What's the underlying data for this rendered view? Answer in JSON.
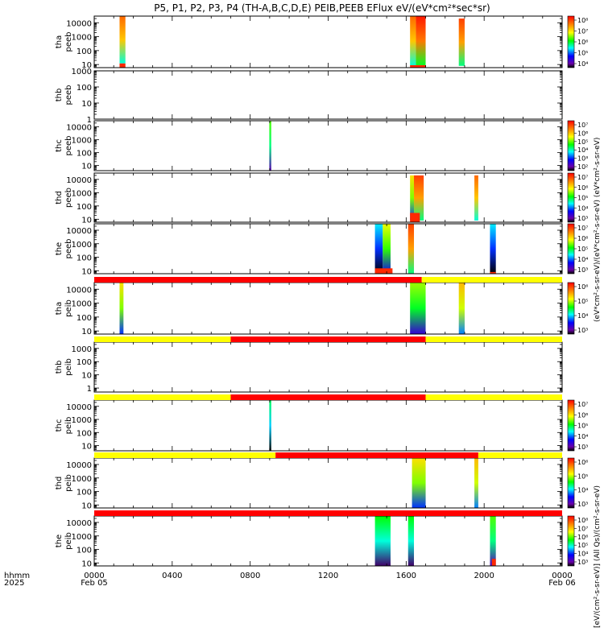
{
  "title": "P5, P1, P2, P3, P4 (TH-A,B,C,D,E) PEIB,PEEB EFlux eV/(eV*cm²*sec*sr)",
  "colorbar_label_top": "(eV*cm²-s-sr-eV)/(eV*cm²-s-sr-eV) (eV*cm²-s-sr-eV)",
  "colorbar_label_bottom": "[eV/(cm²-s-sr-eV)] (All Qs)/(cm²-s-sr-eV)",
  "x_axis": {
    "row_label_1": "hhmm",
    "row_label_2": "2025",
    "ticks": [
      "0000",
      "0400",
      "0800",
      "1200",
      "1600",
      "2000",
      "0000"
    ],
    "date_start": "Feb 05",
    "date_end": "Feb 06"
  },
  "chart_data": [
    {
      "type": "heatmap",
      "ylabel": [
        "tha",
        "peeb"
      ],
      "yscale": "log",
      "ylim": [
        6,
        30000
      ],
      "yticks": [
        "10000",
        "1000",
        "100",
        "10"
      ],
      "cbar_ticks": [
        "10⁸",
        "10⁷",
        "10⁶",
        "10⁵",
        "10⁴"
      ],
      "blocks": [
        {
          "x": [
            1.3,
            1.6
          ],
          "y": [
            12,
            30000
          ],
          "value": 0.75
        },
        {
          "x": [
            16.2,
            16.5
          ],
          "y": [
            8,
            30000
          ],
          "value": 0.75
        },
        {
          "x": [
            16.5,
            17.0
          ],
          "y": [
            8,
            30000
          ],
          "value": 0.85
        },
        {
          "x": [
            18.7,
            19.0
          ],
          "y": [
            8,
            20000
          ],
          "value": 0.8
        }
      ],
      "low_fill": [
        {
          "x": [
            1.3,
            1.6
          ],
          "y": [
            6,
            12
          ],
          "value": 0.95
        },
        {
          "x": [
            16.2,
            17.0
          ],
          "y": [
            6,
            9
          ],
          "value": 0.95
        }
      ]
    },
    {
      "type": "heatmap",
      "ylabel": [
        "thb",
        "peeb"
      ],
      "yscale": "log",
      "ylim": [
        1,
        1000
      ],
      "yticks": [
        "1000",
        "100",
        "10",
        "1"
      ],
      "cbar_ticks": [],
      "blocks": [],
      "low_fill": []
    },
    {
      "type": "heatmap",
      "ylabel": [
        "thc",
        "peeb"
      ],
      "yscale": "log",
      "ylim": [
        4,
        30000
      ],
      "yticks": [
        "10000",
        "1000",
        "100",
        "10"
      ],
      "cbar_ticks": [
        "10⁷",
        "10⁶",
        "10⁵",
        "10⁴",
        "10³",
        "10²"
      ],
      "blocks": [
        {
          "x": [
            8.98,
            9.08
          ],
          "y": [
            4,
            30000
          ],
          "value": 0.45
        }
      ],
      "low_fill": []
    },
    {
      "type": "heatmap",
      "ylabel": [
        "thd",
        "peeb"
      ],
      "yscale": "log",
      "ylim": [
        6,
        30000
      ],
      "yticks": [
        "10000",
        "1000",
        "100",
        "10"
      ],
      "cbar_ticks": [
        "10⁷",
        "10⁶",
        "10⁵",
        "10⁴",
        "10³"
      ],
      "blocks": [
        {
          "x": [
            16.2,
            16.4
          ],
          "y": [
            8,
            20000
          ],
          "value": 0.6
        },
        {
          "x": [
            16.4,
            16.9
          ],
          "y": [
            8,
            20000
          ],
          "value": 0.8
        },
        {
          "x": [
            19.5,
            19.7
          ],
          "y": [
            8,
            20000
          ],
          "value": 0.75
        }
      ],
      "low_fill": [
        {
          "x": [
            16.2,
            16.7
          ],
          "y": [
            6,
            30
          ],
          "value": 0.95
        }
      ]
    },
    {
      "type": "heatmap",
      "ylabel": [
        "the",
        "peeb"
      ],
      "yscale": "log",
      "ylim": [
        6,
        30000
      ],
      "yticks": [
        "10000",
        "1000",
        "100",
        "10"
      ],
      "cbar_ticks": [
        "10⁷",
        "10⁶",
        "10⁵",
        "10⁴",
        "10³"
      ],
      "blocks": [
        {
          "x": [
            14.4,
            14.8
          ],
          "y": [
            6,
            30000
          ],
          "value": 0.25
        },
        {
          "x": [
            14.8,
            15.2
          ],
          "y": [
            6,
            30000
          ],
          "value": 0.55
        },
        {
          "x": [
            16.1,
            16.4
          ],
          "y": [
            6,
            30000
          ],
          "value": 0.8
        },
        {
          "x": [
            20.3,
            20.6
          ],
          "y": [
            6,
            30000
          ],
          "value": 0.25
        }
      ],
      "low_fill": [
        {
          "x": [
            14.4,
            15.3
          ],
          "y": [
            6,
            15
          ],
          "value": 0.95
        },
        {
          "x": [
            20.3,
            20.6
          ],
          "y": [
            6,
            8
          ],
          "value": 0.95
        }
      ]
    },
    {
      "type": "heatmap",
      "ylabel": [
        "tha",
        "peib"
      ],
      "yscale": "log",
      "ylim": [
        6,
        30000
      ],
      "yticks": [
        "10000",
        "1000",
        "100",
        "10"
      ],
      "cbar_ticks": [
        "10⁶",
        "10⁵",
        "10⁴",
        "10³"
      ],
      "blocks": [
        {
          "x": [
            1.3,
            1.5
          ],
          "y": [
            6,
            30000
          ],
          "value": 0.6
        },
        {
          "x": [
            16.2,
            17.0
          ],
          "y": [
            6,
            30000
          ],
          "value": 0.5
        },
        {
          "x": [
            18.7,
            19.0
          ],
          "y": [
            6,
            30000
          ],
          "value": 0.65
        }
      ],
      "low_fill": []
    },
    {
      "type": "heatmap",
      "ylabel": [
        "thb",
        "peib"
      ],
      "yscale": "log",
      "ylim": [
        0.5,
        3000
      ],
      "yticks": [
        "1000",
        "100",
        "10",
        "1"
      ],
      "cbar_ticks": [],
      "blocks": [],
      "low_fill": []
    },
    {
      "type": "heatmap",
      "ylabel": [
        "thc",
        "peib"
      ],
      "yscale": "log",
      "ylim": [
        4,
        30000
      ],
      "yticks": [
        "10000",
        "1000",
        "100",
        "10"
      ],
      "cbar_ticks": [
        "10⁷",
        "10⁶",
        "10⁵",
        "10⁴",
        "10³"
      ],
      "blocks": [
        {
          "x": [
            8.98,
            9.08
          ],
          "y": [
            4,
            30000
          ],
          "value": 0.35
        }
      ],
      "low_fill": []
    },
    {
      "type": "heatmap",
      "ylabel": [
        "thd",
        "peib"
      ],
      "yscale": "log",
      "ylim": [
        6,
        30000
      ],
      "yticks": [
        "10000",
        "1000",
        "100",
        "10"
      ],
      "cbar_ticks": [
        "10⁶",
        "10⁵",
        "10⁴",
        "10³"
      ],
      "blocks": [
        {
          "x": [
            16.3,
            17.0
          ],
          "y": [
            6,
            30000
          ],
          "value": 0.6
        },
        {
          "x": [
            19.5,
            19.7
          ],
          "y": [
            6,
            30000
          ],
          "value": 0.65
        }
      ],
      "low_fill": []
    },
    {
      "type": "heatmap",
      "ylabel": [
        "the",
        "peib"
      ],
      "yscale": "log",
      "ylim": [
        6,
        30000
      ],
      "yticks": [
        "10000",
        "1000",
        "100",
        "10"
      ],
      "cbar_ticks": [
        "10⁸",
        "10⁷",
        "10⁶",
        "10⁵",
        "10⁴",
        "10³"
      ],
      "blocks": [
        {
          "x": [
            14.4,
            15.2
          ],
          "y": [
            6,
            30000
          ],
          "value": 0.4
        },
        {
          "x": [
            16.1,
            16.4
          ],
          "y": [
            6,
            30000
          ],
          "value": 0.4
        },
        {
          "x": [
            20.3,
            20.6
          ],
          "y": [
            6,
            30000
          ],
          "value": 0.45
        }
      ],
      "low_fill": [
        {
          "x": [
            20.4,
            20.6
          ],
          "y": [
            6,
            20
          ],
          "value": 0.95
        }
      ]
    }
  ],
  "mode_bars": [
    {
      "segments": [
        {
          "from": 0,
          "to": 16.8,
          "color": "#ff0000"
        },
        {
          "from": 16.8,
          "to": 24,
          "color": "#ffff00"
        }
      ]
    },
    {
      "segments": [
        {
          "from": 0,
          "to": 7.0,
          "color": "#ffff00"
        },
        {
          "from": 7.0,
          "to": 17.0,
          "color": "#ff0000"
        },
        {
          "from": 17.0,
          "to": 24,
          "color": "#ffff00"
        }
      ]
    },
    {
      "segments": [
        {
          "from": 0,
          "to": 7.0,
          "color": "#ffff00"
        },
        {
          "from": 7.0,
          "to": 17.0,
          "color": "#ff0000"
        },
        {
          "from": 17.0,
          "to": 24,
          "color": "#ffff00"
        }
      ]
    },
    {
      "segments": [
        {
          "from": 0,
          "to": 9.3,
          "color": "#ffff00"
        },
        {
          "from": 9.3,
          "to": 19.7,
          "color": "#ff0000"
        },
        {
          "from": 19.7,
          "to": 24,
          "color": "#ffff00"
        }
      ]
    },
    {
      "segments": [
        {
          "from": 0,
          "to": 24,
          "color": "#ff0000"
        }
      ]
    }
  ]
}
